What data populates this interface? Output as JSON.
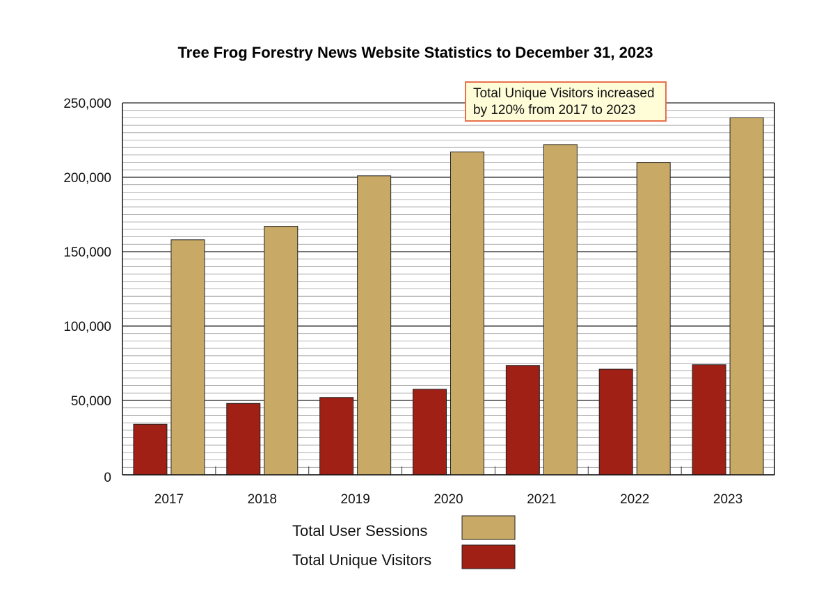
{
  "chart_data": {
    "type": "bar",
    "title": "Tree Frog Forestry News Website Statistics to December 31, 2023",
    "categories": [
      "2017",
      "2018",
      "2019",
      "2020",
      "2021",
      "2022",
      "2023"
    ],
    "series": [
      {
        "name": "Total Unique Visitors",
        "values": [
          34000,
          48000,
          52000,
          57500,
          73500,
          71000,
          74000
        ],
        "color": "#a02016"
      },
      {
        "name": "Total User Sessions",
        "values": [
          158000,
          167000,
          201000,
          217000,
          222000,
          210000,
          240000
        ],
        "color": "#c8aa66"
      }
    ],
    "ylim": [
      0,
      250000
    ],
    "yticks": [
      0,
      50000,
      100000,
      150000,
      200000,
      250000
    ],
    "ytick_labels": [
      "0",
      "50,000",
      "100,000",
      "150,000",
      "200,000",
      "250,000"
    ],
    "xlabel": "",
    "ylabel": "",
    "grid": true,
    "legend": [
      {
        "label": "Total User Sessions",
        "color": "#c8aa66"
      },
      {
        "label": "Total Unique Visitors",
        "color": "#a02016"
      }
    ],
    "legend_position": "bottom-center",
    "annotation": {
      "line1": "Total Unique Visitors increased",
      "line2": "by 120% from 2017 to 2023"
    }
  }
}
